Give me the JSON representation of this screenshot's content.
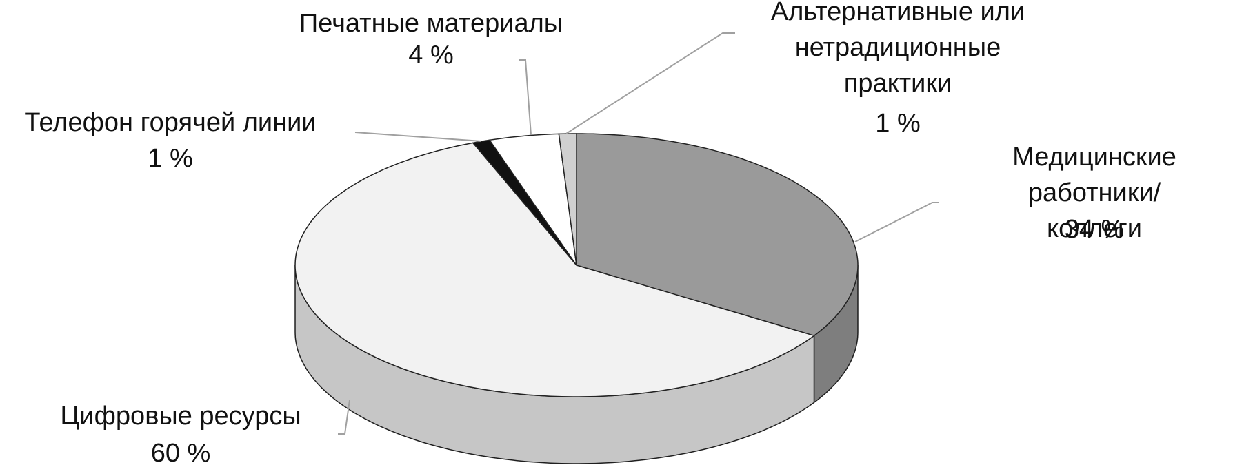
{
  "chart_data": {
    "type": "pie3d",
    "categories": [
      "Медицинские\nработники/коллеги",
      "Цифровые ресурсы",
      "Телефон горячей линии",
      "Печатные материалы",
      "Альтернативные или\nнетрадиционные\nпрактики"
    ],
    "values": [
      34,
      60,
      1,
      4,
      1
    ],
    "value_labels": [
      "34 %",
      "60 %",
      "1 %",
      "4 %",
      "1 %"
    ],
    "colors": [
      "#9a9a9a",
      "#f2f2f2",
      "#111111",
      "#ffffff",
      "#d0d0d0"
    ]
  }
}
